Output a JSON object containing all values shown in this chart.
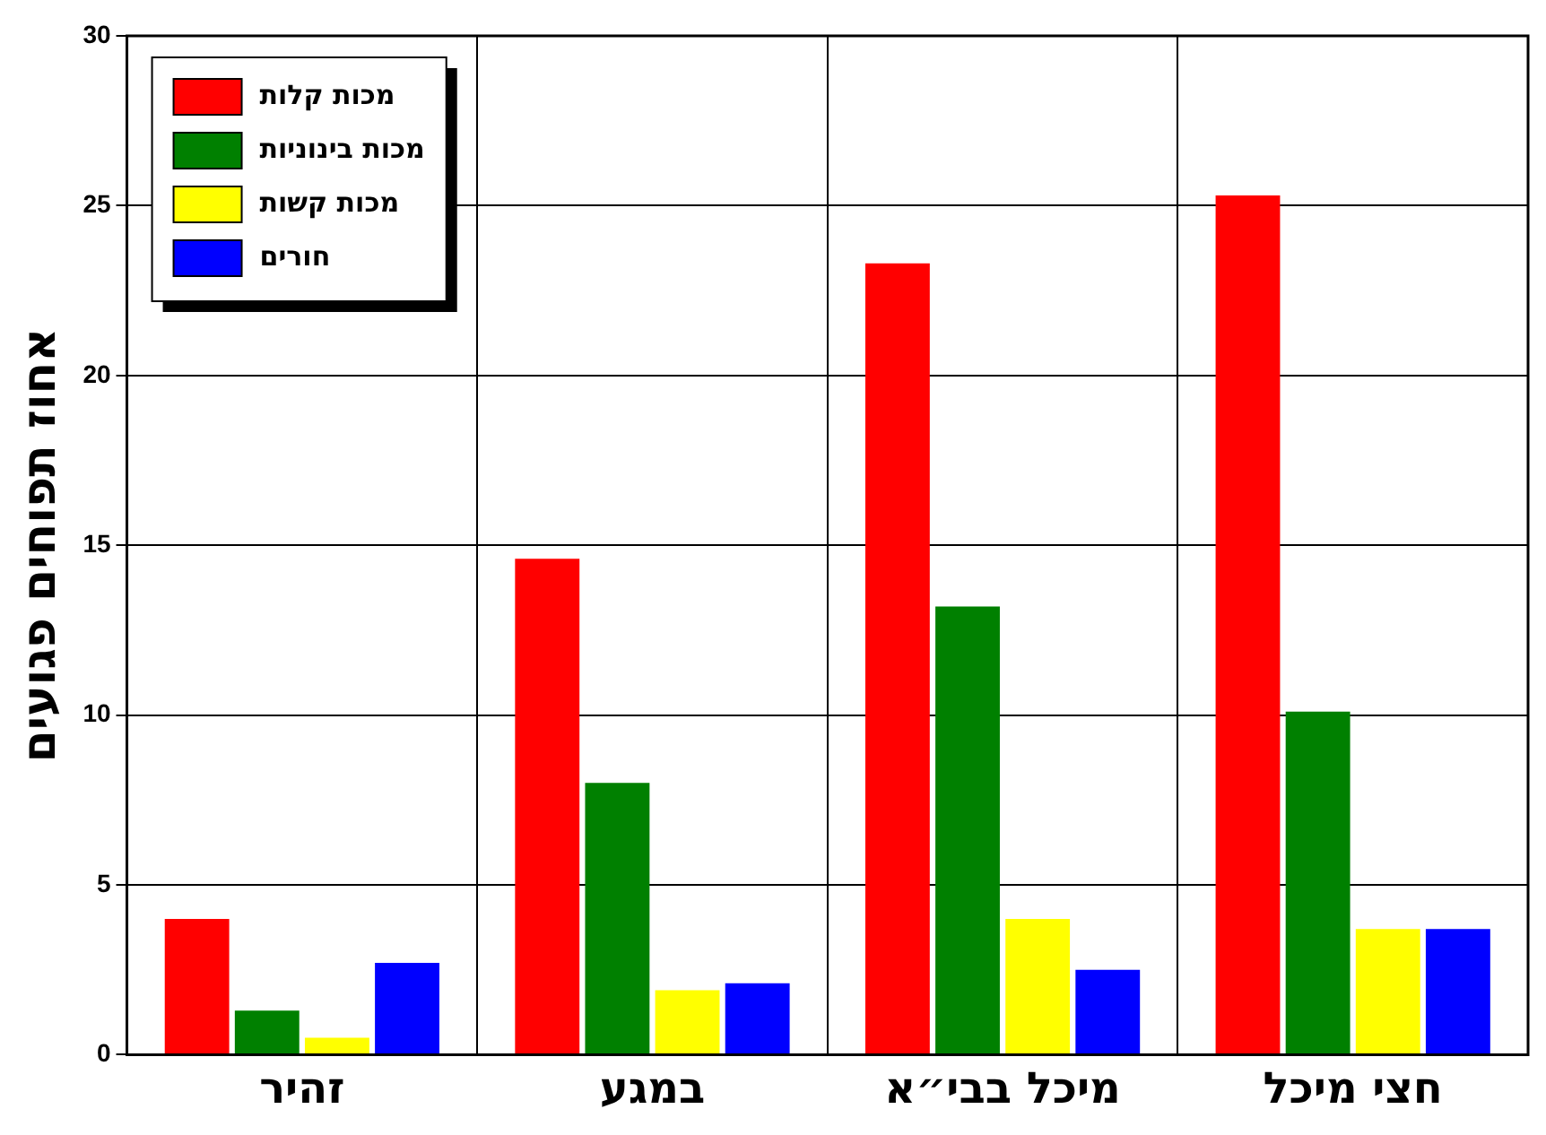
{
  "chart_data": {
    "type": "bar",
    "ylabel": "אחוז תפוחים פגועים",
    "categories": [
      "זהיר",
      "במגע",
      "מיכל בבי״א",
      "חצי מיכל"
    ],
    "series": [
      {
        "name": "מכות קלות",
        "color": "#ff0000",
        "values": [
          4.0,
          14.6,
          23.3,
          25.3
        ]
      },
      {
        "name": "מכות בינוניות",
        "color": "#008000",
        "values": [
          1.3,
          8.0,
          13.2,
          10.1
        ]
      },
      {
        "name": "מכות קשות",
        "color": "#ffff00",
        "values": [
          0.5,
          1.9,
          4.0,
          3.7
        ]
      },
      {
        "name": "חורים",
        "color": "#0000ff",
        "values": [
          2.7,
          2.1,
          2.5,
          3.7
        ]
      }
    ],
    "ylim": [
      0,
      30
    ],
    "yticks": [
      0,
      5,
      10,
      15,
      20,
      25,
      30
    ],
    "grid": true,
    "legend": "top left"
  }
}
